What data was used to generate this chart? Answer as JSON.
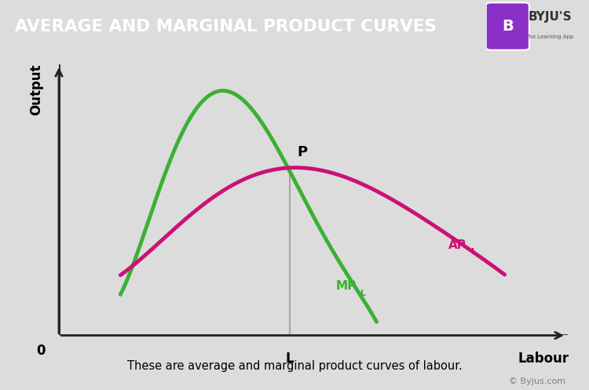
{
  "title": "AVERAGE AND MARGINAL PRODUCT CURVES",
  "title_bg_color": "#8B2FC9",
  "title_text_color": "#FFFFFF",
  "bg_color": "#DCDCDC",
  "plot_bg_color": "#DCDCDC",
  "xlabel": "Labour",
  "ylabel": "Output",
  "origin_label": "0",
  "x_tick_label": "L",
  "point_label": "P",
  "footnote": "These are average and marginal product curves of labour.",
  "copyright": "© Byjus.com",
  "mp_color": "#3CB034",
  "ap_color": "#CC1077",
  "vline_color": "#999999",
  "axis_color": "#222222",
  "intersection_x": 4.5,
  "intersection_y": 6.2,
  "xlim": [
    0,
    10
  ],
  "ylim": [
    0,
    10
  ]
}
